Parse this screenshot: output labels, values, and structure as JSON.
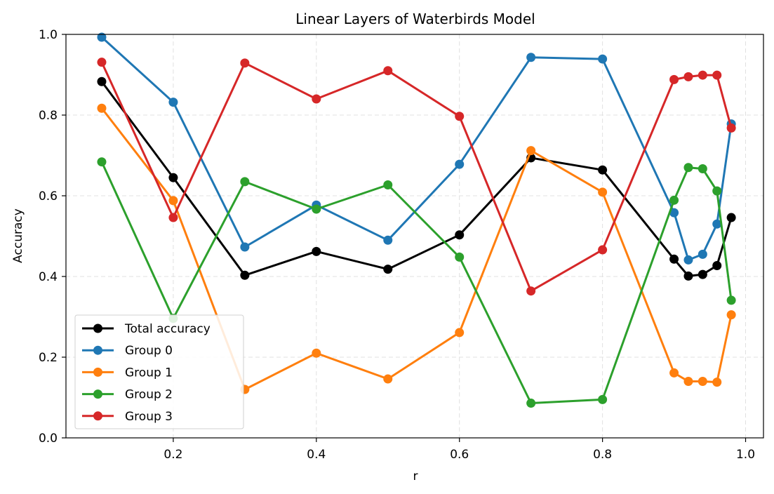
{
  "chart_data": {
    "type": "line",
    "title": "Linear Layers of Waterbirds Model",
    "xlabel": "r",
    "ylabel": "Accuracy",
    "xlim": [
      0.05,
      1.025
    ],
    "ylim": [
      0.0,
      1.0
    ],
    "xticks": [
      "0.2",
      "0.4",
      "0.6",
      "0.8",
      "1.0"
    ],
    "yticks": [
      "0.0",
      "0.2",
      "0.4",
      "0.6",
      "0.8",
      "1.0"
    ],
    "grid": true,
    "legend_position": "lower-left",
    "x": [
      0.1,
      0.2,
      0.3,
      0.4,
      0.5,
      0.6,
      0.7,
      0.8,
      0.9,
      0.92,
      0.94,
      0.96,
      0.98
    ],
    "series": [
      {
        "name": "Total accuracy",
        "color": "#000000",
        "values": [
          0.883,
          0.645,
          0.403,
          0.462,
          0.418,
          0.503,
          0.694,
          0.664,
          0.443,
          0.401,
          0.405,
          0.427,
          0.546
        ]
      },
      {
        "name": "Group 0",
        "color": "#1f77b4",
        "values": [
          0.993,
          0.832,
          0.473,
          0.577,
          0.49,
          0.678,
          0.943,
          0.939,
          0.558,
          0.441,
          0.455,
          0.53,
          0.778
        ]
      },
      {
        "name": "Group 1",
        "color": "#ff7f0e",
        "values": [
          0.817,
          0.588,
          0.12,
          0.21,
          0.146,
          0.261,
          0.712,
          0.609,
          0.161,
          0.14,
          0.14,
          0.138,
          0.305
        ]
      },
      {
        "name": "Group 2",
        "color": "#2ca02c",
        "values": [
          0.684,
          0.296,
          0.635,
          0.567,
          0.627,
          0.448,
          0.086,
          0.095,
          0.589,
          0.67,
          0.667,
          0.612,
          0.341
        ]
      },
      {
        "name": "Group 3",
        "color": "#d62728",
        "values": [
          0.931,
          0.546,
          0.929,
          0.84,
          0.91,
          0.797,
          0.364,
          0.466,
          0.888,
          0.895,
          0.899,
          0.899,
          0.768
        ]
      }
    ]
  }
}
